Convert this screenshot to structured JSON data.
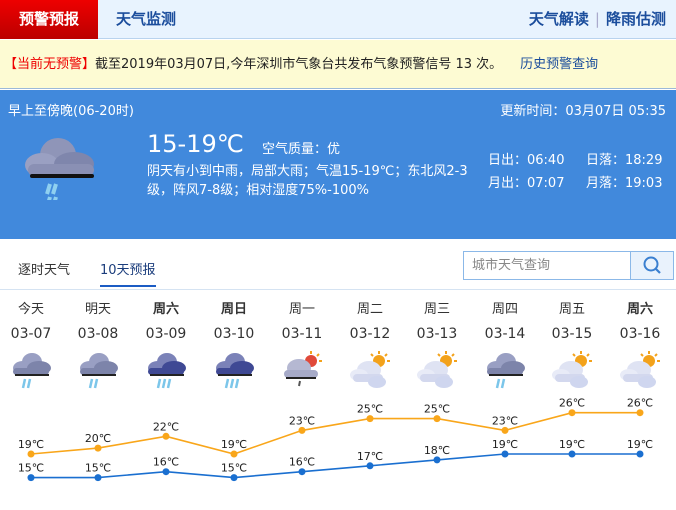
{
  "nav": {
    "warning_tab": "预警预报",
    "monitor_tab": "天气监测",
    "interpret_link": "天气解读",
    "rain_link": "降雨估测"
  },
  "warning": {
    "status": "【当前无预警】",
    "text": "截至2019年03月07日,今年深圳市气象台共发布气象预警信号 13 次。",
    "history_link": "历史预警查询"
  },
  "today": {
    "period": "早上至傍晚(06-20时)",
    "updated": "更新时间：03月07日 05:35",
    "temp": "15-19℃",
    "air_quality": "空气质量：优",
    "description": "阴天有小到中雨，局部大雨；气温15-19℃；东北风2-3级，阵风7-8级；相对湿度75%-100%",
    "sunrise": "日出：06:40",
    "sunset": "日落：18:29",
    "moonrise": "月出：07:07",
    "moonset": "月落：19:03",
    "icon": "rain-cloud"
  },
  "tabs": {
    "hourly": "逐时天气",
    "ten_day": "10天预报"
  },
  "search": {
    "placeholder": "城市天气查询"
  },
  "colors": {
    "high": "#f9a61a",
    "low": "#1a6fd0",
    "panel": "#4189dc",
    "warn_red": "#e00000"
  },
  "forecast": [
    {
      "day": "今天",
      "date": "03-07",
      "icon": "rain",
      "bold": false
    },
    {
      "day": "明天",
      "date": "03-08",
      "icon": "rain",
      "bold": false
    },
    {
      "day": "周六",
      "date": "03-09",
      "icon": "heavy-rain",
      "bold": true
    },
    {
      "day": "周日",
      "date": "03-10",
      "icon": "heavy-rain",
      "bold": true
    },
    {
      "day": "周一",
      "date": "03-11",
      "icon": "sun-shower",
      "bold": false
    },
    {
      "day": "周二",
      "date": "03-12",
      "icon": "partly-cloudy",
      "bold": false
    },
    {
      "day": "周三",
      "date": "03-13",
      "icon": "partly-cloudy",
      "bold": false
    },
    {
      "day": "周四",
      "date": "03-14",
      "icon": "rain",
      "bold": false
    },
    {
      "day": "周五",
      "date": "03-15",
      "icon": "partly-cloudy",
      "bold": false
    },
    {
      "day": "周六",
      "date": "03-16",
      "icon": "partly-cloudy",
      "bold": true
    }
  ],
  "chart_data": {
    "type": "line",
    "categories": [
      "03-07",
      "03-08",
      "03-09",
      "03-10",
      "03-11",
      "03-12",
      "03-13",
      "03-14",
      "03-15",
      "03-16"
    ],
    "series": [
      {
        "values": [
          19,
          20,
          22,
          19,
          23,
          25,
          25,
          23,
          26,
          26
        ],
        "labels": [
          "19℃",
          "20℃",
          "22℃",
          "19℃",
          "23℃",
          "25℃",
          "25℃",
          "23℃",
          "26℃",
          "26℃"
        ],
        "color": "#f9a61a"
      },
      {
        "values": [
          15,
          15,
          16,
          15,
          16,
          17,
          18,
          19,
          19,
          19
        ],
        "labels": [
          "15℃",
          "15℃",
          "16℃",
          "15℃",
          "16℃",
          "17℃",
          "18℃",
          "19℃",
          "19℃",
          "19℃"
        ],
        "color": "#1a6fd0"
      }
    ],
    "grid": false
  }
}
